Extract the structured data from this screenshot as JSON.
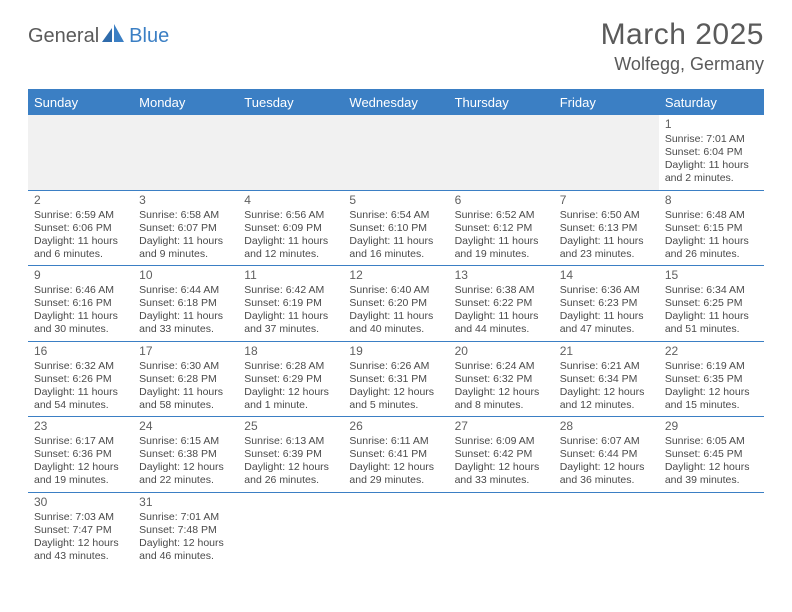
{
  "logo": {
    "part1": "General",
    "part2": "Blue"
  },
  "title": "March 2025",
  "location": "Wolfegg, Germany",
  "colors": {
    "accent": "#3b7fc4",
    "text": "#4a4a4a",
    "header_text": "#5a5a5a",
    "background": "#ffffff",
    "empty_cell": "#f1f1f1",
    "weekday_text": "#ffffff"
  },
  "weekdays": [
    "Sunday",
    "Monday",
    "Tuesday",
    "Wednesday",
    "Thursday",
    "Friday",
    "Saturday"
  ],
  "weeks": [
    [
      null,
      null,
      null,
      null,
      null,
      null,
      {
        "n": "1",
        "sr": "Sunrise: 7:01 AM",
        "ss": "Sunset: 6:04 PM",
        "d1": "Daylight: 11 hours",
        "d2": "and 2 minutes."
      }
    ],
    [
      {
        "n": "2",
        "sr": "Sunrise: 6:59 AM",
        "ss": "Sunset: 6:06 PM",
        "d1": "Daylight: 11 hours",
        "d2": "and 6 minutes."
      },
      {
        "n": "3",
        "sr": "Sunrise: 6:58 AM",
        "ss": "Sunset: 6:07 PM",
        "d1": "Daylight: 11 hours",
        "d2": "and 9 minutes."
      },
      {
        "n": "4",
        "sr": "Sunrise: 6:56 AM",
        "ss": "Sunset: 6:09 PM",
        "d1": "Daylight: 11 hours",
        "d2": "and 12 minutes."
      },
      {
        "n": "5",
        "sr": "Sunrise: 6:54 AM",
        "ss": "Sunset: 6:10 PM",
        "d1": "Daylight: 11 hours",
        "d2": "and 16 minutes."
      },
      {
        "n": "6",
        "sr": "Sunrise: 6:52 AM",
        "ss": "Sunset: 6:12 PM",
        "d1": "Daylight: 11 hours",
        "d2": "and 19 minutes."
      },
      {
        "n": "7",
        "sr": "Sunrise: 6:50 AM",
        "ss": "Sunset: 6:13 PM",
        "d1": "Daylight: 11 hours",
        "d2": "and 23 minutes."
      },
      {
        "n": "8",
        "sr": "Sunrise: 6:48 AM",
        "ss": "Sunset: 6:15 PM",
        "d1": "Daylight: 11 hours",
        "d2": "and 26 minutes."
      }
    ],
    [
      {
        "n": "9",
        "sr": "Sunrise: 6:46 AM",
        "ss": "Sunset: 6:16 PM",
        "d1": "Daylight: 11 hours",
        "d2": "and 30 minutes."
      },
      {
        "n": "10",
        "sr": "Sunrise: 6:44 AM",
        "ss": "Sunset: 6:18 PM",
        "d1": "Daylight: 11 hours",
        "d2": "and 33 minutes."
      },
      {
        "n": "11",
        "sr": "Sunrise: 6:42 AM",
        "ss": "Sunset: 6:19 PM",
        "d1": "Daylight: 11 hours",
        "d2": "and 37 minutes."
      },
      {
        "n": "12",
        "sr": "Sunrise: 6:40 AM",
        "ss": "Sunset: 6:20 PM",
        "d1": "Daylight: 11 hours",
        "d2": "and 40 minutes."
      },
      {
        "n": "13",
        "sr": "Sunrise: 6:38 AM",
        "ss": "Sunset: 6:22 PM",
        "d1": "Daylight: 11 hours",
        "d2": "and 44 minutes."
      },
      {
        "n": "14",
        "sr": "Sunrise: 6:36 AM",
        "ss": "Sunset: 6:23 PM",
        "d1": "Daylight: 11 hours",
        "d2": "and 47 minutes."
      },
      {
        "n": "15",
        "sr": "Sunrise: 6:34 AM",
        "ss": "Sunset: 6:25 PM",
        "d1": "Daylight: 11 hours",
        "d2": "and 51 minutes."
      }
    ],
    [
      {
        "n": "16",
        "sr": "Sunrise: 6:32 AM",
        "ss": "Sunset: 6:26 PM",
        "d1": "Daylight: 11 hours",
        "d2": "and 54 minutes."
      },
      {
        "n": "17",
        "sr": "Sunrise: 6:30 AM",
        "ss": "Sunset: 6:28 PM",
        "d1": "Daylight: 11 hours",
        "d2": "and 58 minutes."
      },
      {
        "n": "18",
        "sr": "Sunrise: 6:28 AM",
        "ss": "Sunset: 6:29 PM",
        "d1": "Daylight: 12 hours",
        "d2": "and 1 minute."
      },
      {
        "n": "19",
        "sr": "Sunrise: 6:26 AM",
        "ss": "Sunset: 6:31 PM",
        "d1": "Daylight: 12 hours",
        "d2": "and 5 minutes."
      },
      {
        "n": "20",
        "sr": "Sunrise: 6:24 AM",
        "ss": "Sunset: 6:32 PM",
        "d1": "Daylight: 12 hours",
        "d2": "and 8 minutes."
      },
      {
        "n": "21",
        "sr": "Sunrise: 6:21 AM",
        "ss": "Sunset: 6:34 PM",
        "d1": "Daylight: 12 hours",
        "d2": "and 12 minutes."
      },
      {
        "n": "22",
        "sr": "Sunrise: 6:19 AM",
        "ss": "Sunset: 6:35 PM",
        "d1": "Daylight: 12 hours",
        "d2": "and 15 minutes."
      }
    ],
    [
      {
        "n": "23",
        "sr": "Sunrise: 6:17 AM",
        "ss": "Sunset: 6:36 PM",
        "d1": "Daylight: 12 hours",
        "d2": "and 19 minutes."
      },
      {
        "n": "24",
        "sr": "Sunrise: 6:15 AM",
        "ss": "Sunset: 6:38 PM",
        "d1": "Daylight: 12 hours",
        "d2": "and 22 minutes."
      },
      {
        "n": "25",
        "sr": "Sunrise: 6:13 AM",
        "ss": "Sunset: 6:39 PM",
        "d1": "Daylight: 12 hours",
        "d2": "and 26 minutes."
      },
      {
        "n": "26",
        "sr": "Sunrise: 6:11 AM",
        "ss": "Sunset: 6:41 PM",
        "d1": "Daylight: 12 hours",
        "d2": "and 29 minutes."
      },
      {
        "n": "27",
        "sr": "Sunrise: 6:09 AM",
        "ss": "Sunset: 6:42 PM",
        "d1": "Daylight: 12 hours",
        "d2": "and 33 minutes."
      },
      {
        "n": "28",
        "sr": "Sunrise: 6:07 AM",
        "ss": "Sunset: 6:44 PM",
        "d1": "Daylight: 12 hours",
        "d2": "and 36 minutes."
      },
      {
        "n": "29",
        "sr": "Sunrise: 6:05 AM",
        "ss": "Sunset: 6:45 PM",
        "d1": "Daylight: 12 hours",
        "d2": "and 39 minutes."
      }
    ],
    [
      {
        "n": "30",
        "sr": "Sunrise: 7:03 AM",
        "ss": "Sunset: 7:47 PM",
        "d1": "Daylight: 12 hours",
        "d2": "and 43 minutes."
      },
      {
        "n": "31",
        "sr": "Sunrise: 7:01 AM",
        "ss": "Sunset: 7:48 PM",
        "d1": "Daylight: 12 hours",
        "d2": "and 46 minutes."
      },
      null,
      null,
      null,
      null,
      null
    ]
  ]
}
